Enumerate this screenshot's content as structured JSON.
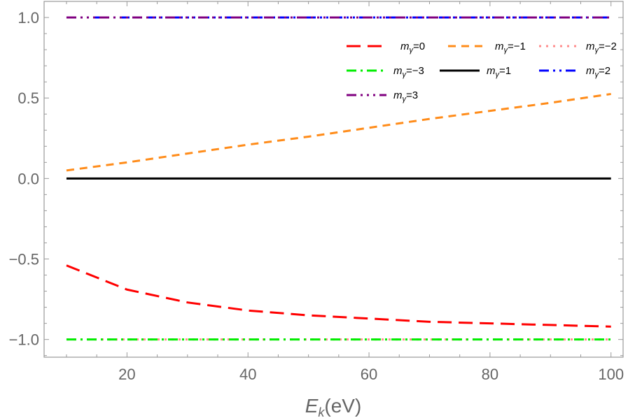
{
  "chart_data": {
    "type": "line",
    "title": "",
    "xlabel": {
      "main": "E",
      "sub": "k",
      "rest": "(eV)"
    },
    "ylabel": "",
    "xlim": [
      6.3,
      102
    ],
    "ylim": [
      -1.11,
      1.1
    ],
    "xticks": [
      20,
      40,
      60,
      80,
      100
    ],
    "xtick_labels": [
      "20",
      "40",
      "60",
      "80",
      "100"
    ],
    "yticks": [
      -1.0,
      -0.5,
      0.0,
      0.5,
      1.0
    ],
    "ytick_labels": [
      "−1.0",
      "−0.5",
      "0.0",
      "0.5",
      "1.0"
    ],
    "grid": false,
    "legend_placement": "top-right",
    "x": [
      10,
      20,
      30,
      40,
      50,
      60,
      70,
      80,
      90,
      100
    ],
    "series": [
      {
        "name": "mγ=0",
        "color": "#ff0000",
        "style": "long-dash",
        "values": [
          -0.54,
          -0.69,
          -0.77,
          -0.82,
          -0.85,
          -0.87,
          -0.89,
          -0.9,
          -0.91,
          -0.92
        ]
      },
      {
        "name": "mγ=−1",
        "color": "#ff8c1a",
        "style": "dash",
        "values": [
          0.05,
          0.1,
          0.155,
          0.21,
          0.26,
          0.315,
          0.37,
          0.42,
          0.47,
          0.525
        ]
      },
      {
        "name": "mγ=−2",
        "color": "#ff8c8c",
        "style": "dotted",
        "values": [
          -1,
          -1,
          -1,
          -1,
          -1,
          -1,
          -1,
          -1,
          -1,
          -1
        ]
      },
      {
        "name": "mγ=−3",
        "color": "#00ee00",
        "style": "dash-dot",
        "values": [
          -1,
          -1,
          -1,
          -1,
          -1,
          -1,
          -1,
          -1,
          -1,
          -1
        ]
      },
      {
        "name": "mγ=1",
        "color": "#000000",
        "style": "solid",
        "values": [
          0,
          0,
          0,
          0,
          0,
          0,
          0,
          0,
          0,
          0
        ]
      },
      {
        "name": "mγ=2",
        "color": "#0000ff",
        "style": "dash-dot-dot",
        "values": [
          1,
          1,
          1,
          1,
          1,
          1,
          1,
          1,
          1,
          1
        ]
      },
      {
        "name": "mγ=3",
        "color": "#800080",
        "style": "dash-dot-dot-dot",
        "values": [
          1,
          1,
          1,
          1,
          1,
          1,
          1,
          1,
          1,
          1
        ]
      }
    ]
  }
}
